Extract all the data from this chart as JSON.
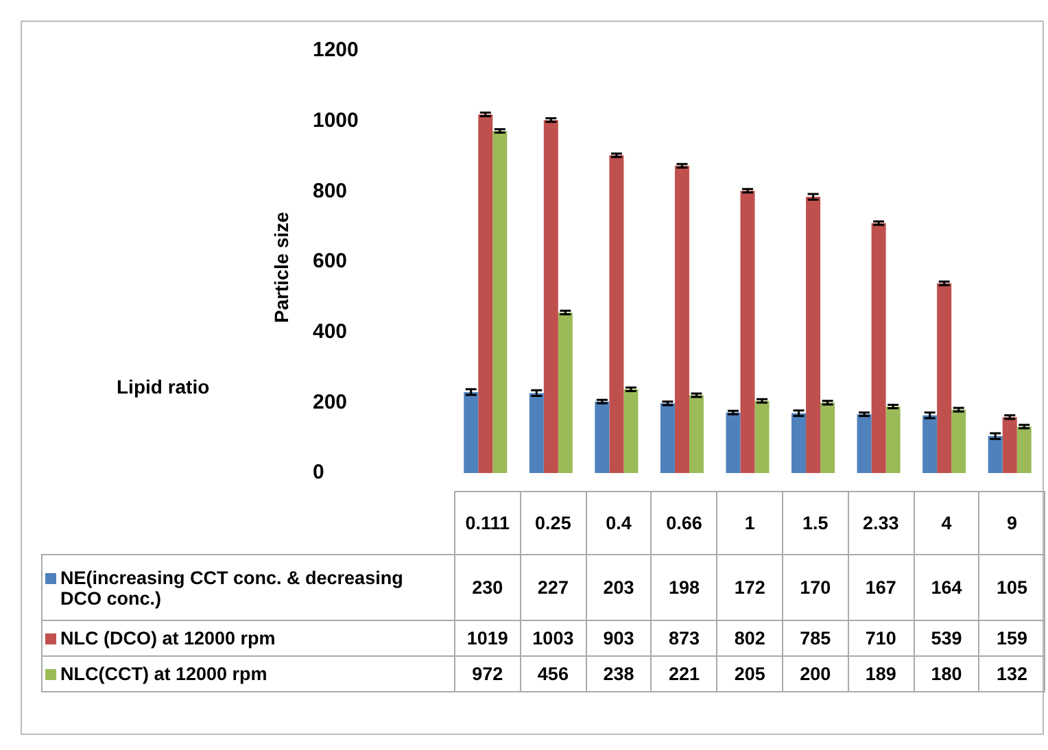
{
  "chart_data": {
    "type": "bar",
    "ylabel": "Particle size",
    "annotations": [
      "Lipid ratio"
    ],
    "categories": [
      "0.111",
      "0.25",
      "0.4",
      "0.66",
      "1",
      "1.5",
      "2.33",
      "4",
      "9"
    ],
    "series": [
      {
        "name": "NE(increasing CCT conc. & decreasing DCO conc.)",
        "color": "#4f81bd",
        "values": [
          230,
          227,
          203,
          198,
          172,
          170,
          167,
          164,
          105
        ],
        "errors": [
          8,
          8,
          5,
          5,
          5,
          8,
          5,
          8,
          8
        ]
      },
      {
        "name": "NLC (DCO) at 12000 rpm",
        "color": "#c0504d",
        "values": [
          1019,
          1003,
          903,
          873,
          802,
          785,
          710,
          539,
          159
        ],
        "errors": [
          5,
          5,
          5,
          5,
          5,
          8,
          5,
          5,
          5
        ]
      },
      {
        "name": "NLC(CCT) at 12000 rpm",
        "color": "#9bbb59",
        "values": [
          972,
          456,
          238,
          221,
          205,
          200,
          189,
          180,
          132
        ],
        "errors": [
          5,
          5,
          5,
          5,
          5,
          5,
          5,
          5,
          5
        ]
      }
    ],
    "ylim": [
      0,
      1200
    ],
    "yticks": [
      0,
      200,
      400,
      600,
      800,
      1000,
      1200
    ],
    "grid": false,
    "legend": "bottom",
    "data_labels": true
  }
}
